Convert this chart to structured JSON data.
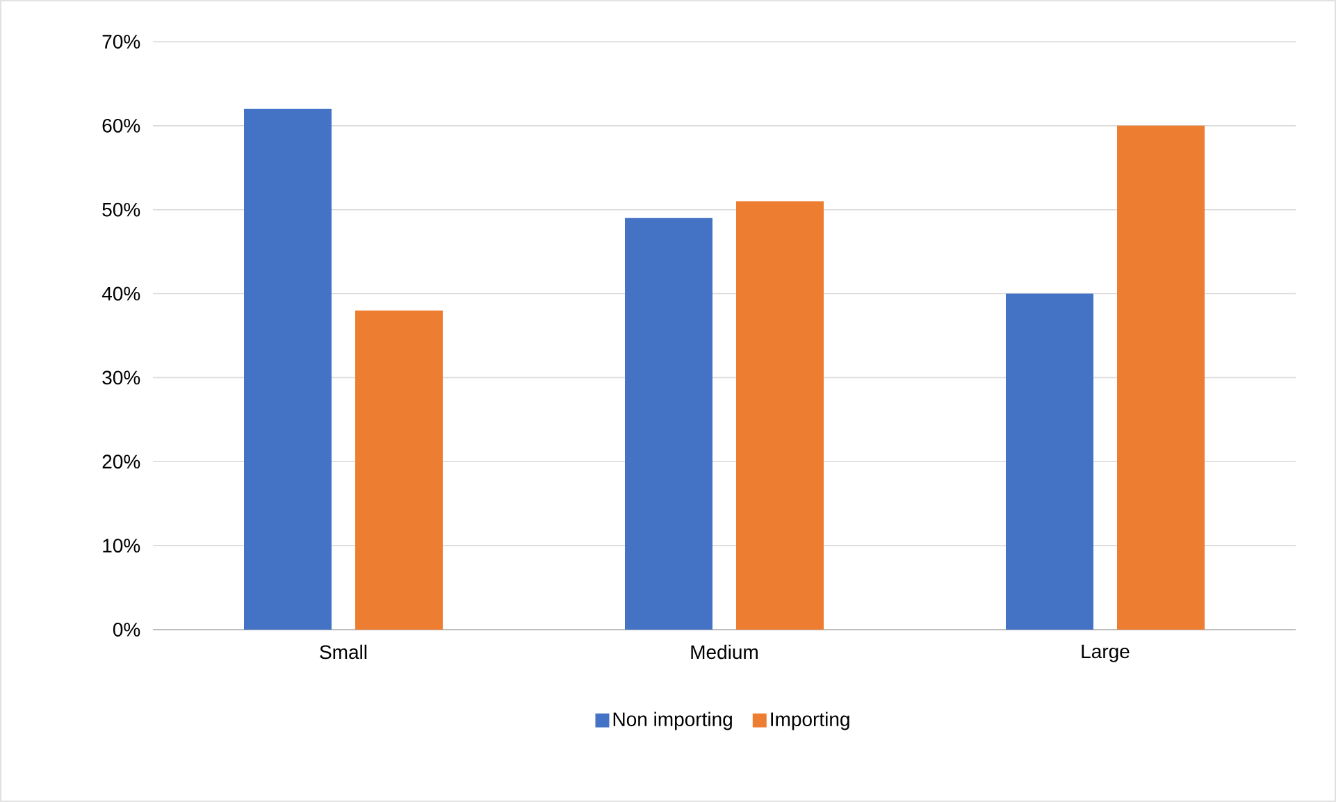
{
  "chart_data": {
    "type": "bar",
    "categories": [
      "Small",
      "Medium",
      "Large"
    ],
    "series": [
      {
        "name": "Non importing",
        "color": "#4472c4",
        "values": [
          62,
          49,
          40
        ]
      },
      {
        "name": "Importing",
        "color": "#ed7d31",
        "values": [
          38,
          51,
          60
        ]
      }
    ],
    "ylim": [
      0,
      70
    ],
    "yticks": [
      {
        "value": 0,
        "label": "0%"
      },
      {
        "value": 10,
        "label": "10%"
      },
      {
        "value": 20,
        "label": "20%"
      },
      {
        "value": 30,
        "label": "30%"
      },
      {
        "value": 40,
        "label": "40%"
      },
      {
        "value": 50,
        "label": "50%"
      },
      {
        "value": 60,
        "label": "60%"
      },
      {
        "value": 70,
        "label": "70%"
      }
    ],
    "grid": "y",
    "legend": "bottom"
  }
}
